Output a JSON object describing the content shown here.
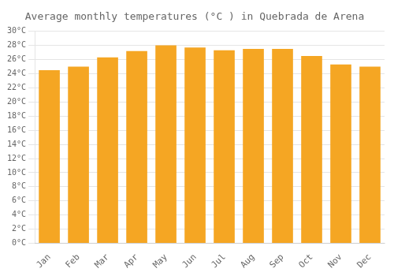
{
  "chart_data": {
    "type": "bar",
    "title": "Average monthly temperatures (°C ) in Quebrada de Arena",
    "categories": [
      "Jan",
      "Feb",
      "Mar",
      "Apr",
      "May",
      "Jun",
      "Jul",
      "Aug",
      "Sep",
      "Oct",
      "Nov",
      "Dec"
    ],
    "values": [
      24.5,
      25.0,
      26.3,
      27.2,
      28.0,
      27.7,
      27.3,
      27.5,
      27.5,
      26.5,
      25.3,
      25.0
    ],
    "color": "#F5A623",
    "ylim": [
      0,
      30
    ],
    "yticks": [
      {
        "value": 0,
        "label": "0°C"
      },
      {
        "value": 2,
        "label": "2°C"
      },
      {
        "value": 4,
        "label": "4°C"
      },
      {
        "value": 6,
        "label": "6°C"
      },
      {
        "value": 8,
        "label": "8°C"
      },
      {
        "value": 10,
        "label": "10°C"
      },
      {
        "value": 12,
        "label": "12°C"
      },
      {
        "value": 14,
        "label": "14°C"
      },
      {
        "value": 16,
        "label": "16°C"
      },
      {
        "value": 18,
        "label": "18°C"
      },
      {
        "value": 20,
        "label": "20°C"
      },
      {
        "value": 22,
        "label": "22°C"
      },
      {
        "value": 24,
        "label": "24°C"
      },
      {
        "value": 26,
        "label": "26°C"
      },
      {
        "value": 28,
        "label": "28°C"
      },
      {
        "value": 30,
        "label": "30°C"
      }
    ],
    "grid": true
  }
}
